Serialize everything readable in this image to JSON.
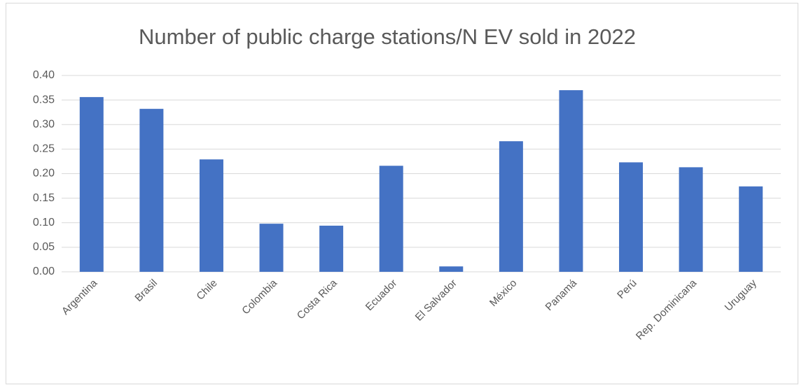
{
  "chart_data": {
    "type": "bar",
    "title": "Number of public charge stations/N EV sold in 2022",
    "categories": [
      "Argentina",
      "Brasil",
      "Chile",
      "Colombia",
      "Costa Rica",
      "Ecuador",
      "El Salvador",
      "México",
      "Panamá",
      "Perú",
      "Rep. Dominicana",
      "Uruguay"
    ],
    "values": [
      0.356,
      0.332,
      0.229,
      0.098,
      0.094,
      0.216,
      0.011,
      0.266,
      0.37,
      0.223,
      0.213,
      0.174
    ],
    "color": "#4472c4",
    "ylim": [
      0,
      0.4
    ],
    "yticks": [
      {
        "value": 0,
        "label": "0.00"
      },
      {
        "value": 0.05,
        "label": "0.05"
      },
      {
        "value": 0.1,
        "label": "0.10"
      },
      {
        "value": 0.15,
        "label": "0.15"
      },
      {
        "value": 0.2,
        "label": "0.20"
      },
      {
        "value": 0.25,
        "label": "0.25"
      },
      {
        "value": 0.3,
        "label": "0.30"
      },
      {
        "value": 0.35,
        "label": "0.35"
      },
      {
        "value": 0.4,
        "label": "0.40"
      }
    ],
    "grid": true
  }
}
